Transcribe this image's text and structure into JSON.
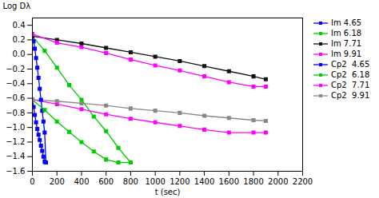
{
  "chart_data": {
    "type": "line",
    "xlabel": "t (sec)",
    "ylabel": "Log Dλ",
    "xlim": [
      0,
      2200
    ],
    "ylim": [
      -1.6,
      0.5
    ],
    "xticks": [
      0,
      200,
      400,
      600,
      800,
      1000,
      1200,
      1400,
      1600,
      1800,
      2000,
      2200
    ],
    "yticks": [
      0.4,
      0.2,
      {
        "value": 0,
        "label": "0.0"
      },
      -0.2,
      -0.4,
      -0.6,
      -0.8,
      {
        "value": -1,
        "label": "−1.0"
      },
      -1.2,
      -1.4,
      -1.6
    ],
    "grid": false,
    "legend": "right",
    "marker": "square",
    "series": [
      {
        "name": "Im 4.65",
        "color": "#0000ff",
        "x": [
          0,
          10,
          20,
          30,
          40,
          50,
          60,
          70,
          80,
          90,
          100,
          110
        ],
        "values": [
          0.25,
          0.18,
          0.08,
          -0.05,
          -0.18,
          -0.32,
          -0.47,
          -0.62,
          -0.77,
          -0.92,
          -1.07,
          -1.48
        ]
      },
      {
        "name": "Im 6.18",
        "color": "#00cc00",
        "x": [
          0,
          100,
          200,
          300,
          400,
          500,
          600,
          700,
          800
        ],
        "values": [
          0.25,
          0.05,
          -0.18,
          -0.42,
          -0.62,
          -0.85,
          -1.05,
          -1.28,
          -1.48
        ]
      },
      {
        "name": "Im 7.71",
        "color": "#111111",
        "x": [
          0,
          200,
          400,
          600,
          800,
          1000,
          1200,
          1400,
          1600,
          1800,
          1900
        ],
        "values": [
          0.25,
          0.2,
          0.15,
          0.09,
          0.03,
          -0.03,
          -0.09,
          -0.16,
          -0.23,
          -0.3,
          -0.34
        ]
      },
      {
        "name": "Im 9.91",
        "color": "#ff00ff",
        "x": [
          0,
          200,
          400,
          600,
          800,
          1000,
          1200,
          1400,
          1600,
          1800,
          1900
        ],
        "values": [
          0.28,
          0.16,
          0.1,
          0.02,
          -0.07,
          -0.15,
          -0.22,
          -0.3,
          -0.38,
          -0.44,
          -0.44
        ]
      },
      {
        "name": "Cp2  4.65",
        "color": "#0000ff",
        "x": [
          0,
          10,
          20,
          30,
          40,
          50,
          60,
          70,
          80,
          90,
          100,
          110
        ],
        "values": [
          -0.62,
          -0.72,
          -0.83,
          -0.93,
          -1.02,
          -1.1,
          -1.17,
          -1.25,
          -1.32,
          -1.4,
          -1.47,
          -1.48
        ]
      },
      {
        "name": "Cp2  6.18",
        "color": "#00cc00",
        "x": [
          0,
          100,
          200,
          300,
          400,
          500,
          600,
          700,
          800
        ],
        "values": [
          -0.62,
          -0.76,
          -0.92,
          -1.06,
          -1.2,
          -1.33,
          -1.44,
          -1.48,
          -1.48
        ]
      },
      {
        "name": "Cp2  7.71",
        "color": "#ff00ff",
        "x": [
          0,
          200,
          400,
          600,
          800,
          1000,
          1200,
          1400,
          1600,
          1800,
          1900
        ],
        "values": [
          -0.62,
          -0.68,
          -0.75,
          -0.82,
          -0.88,
          -0.93,
          -0.98,
          -1.03,
          -1.07,
          -1.07,
          -1.07
        ]
      },
      {
        "name": "Cp2  9.91",
        "color": "#888888",
        "x": [
          0,
          200,
          400,
          600,
          800,
          1000,
          1200,
          1400,
          1600,
          1800,
          1900
        ],
        "values": [
          -0.62,
          -0.64,
          -0.67,
          -0.7,
          -0.74,
          -0.77,
          -0.8,
          -0.84,
          -0.87,
          -0.9,
          -0.91
        ]
      }
    ]
  }
}
